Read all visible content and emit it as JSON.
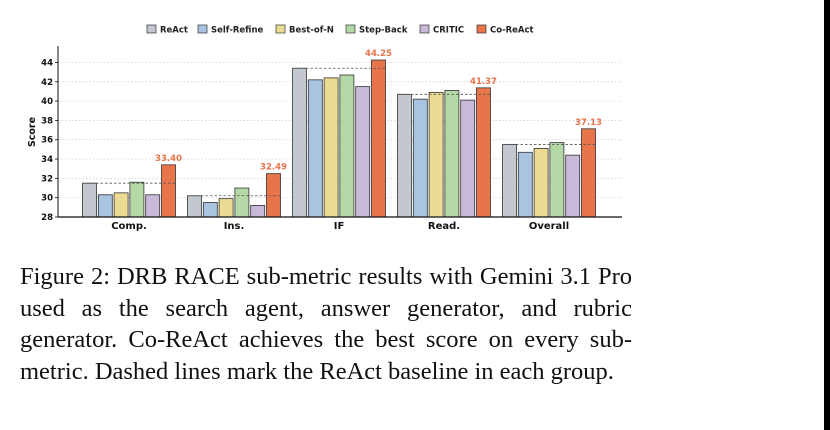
{
  "chart_data": {
    "type": "bar",
    "categories": [
      "Comp.",
      "Ins.",
      "IF",
      "Read.",
      "Overall"
    ],
    "series": [
      {
        "name": "ReAct",
        "color": "#c3c7ce",
        "values": [
          31.5,
          30.2,
          43.4,
          40.7,
          35.5
        ]
      },
      {
        "name": "Self-Refine",
        "color": "#a9c3e0",
        "values": [
          30.3,
          29.5,
          42.2,
          40.2,
          34.7
        ]
      },
      {
        "name": "Best-of-N",
        "color": "#ecdc93",
        "values": [
          30.5,
          29.9,
          42.4,
          40.9,
          35.1
        ]
      },
      {
        "name": "Step-Back",
        "color": "#b4d8a6",
        "values": [
          31.6,
          31.0,
          42.7,
          41.1,
          35.7
        ]
      },
      {
        "name": "CRITIC",
        "color": "#c8b9d9",
        "values": [
          30.3,
          29.2,
          41.5,
          40.1,
          34.4
        ]
      },
      {
        "name": "Co-ReAct",
        "color": "#e8744a",
        "values": [
          33.4,
          32.49,
          44.25,
          41.37,
          37.13
        ]
      }
    ],
    "data_labels": [
      "33.40",
      "32.49",
      "44.25",
      "41.37",
      "37.13"
    ],
    "baseline_series": "ReAct",
    "ylabel": "Score",
    "ylim": [
      28,
      46
    ],
    "yticks": [
      28,
      30,
      32,
      34,
      36,
      38,
      40,
      42,
      44
    ],
    "grid": "horizontal dotted",
    "legend": "top"
  },
  "caption": "Figure 2: DRB RACE sub-metric results with Gemini 3.1 Pro used as the search agent, answer generator, and rubric generator. Co-ReAct achieves the best score on every sub-metric. Dashed lines mark the ReAct baseline in each group.",
  "colors": {
    "label_highlight": "#e8744a",
    "axis": "#111111",
    "grid": "#cccccc",
    "baseline": "#555555"
  }
}
